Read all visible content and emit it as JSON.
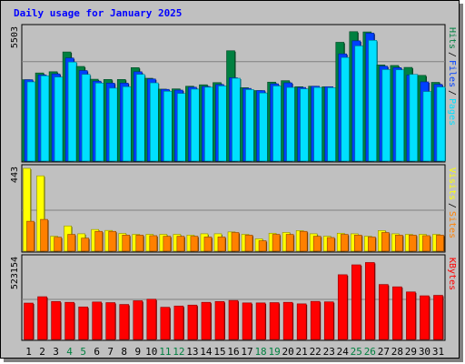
{
  "chart_data": {
    "type": "bar",
    "title": "Daily usage for January 2025",
    "categories": [
      "1",
      "2",
      "3",
      "4",
      "5",
      "6",
      "7",
      "8",
      "9",
      "10",
      "11",
      "12",
      "13",
      "14",
      "15",
      "16",
      "17",
      "18",
      "19",
      "20",
      "21",
      "22",
      "23",
      "24",
      "25",
      "26",
      "27",
      "28",
      "29",
      "30",
      "31"
    ],
    "weekend_days": [
      "4",
      "5",
      "11",
      "12",
      "18",
      "19",
      "25",
      "26"
    ],
    "panels": [
      {
        "name": "hits-files-pages",
        "ymax_label": "5503",
        "ymax": 5503,
        "right_labels": [
          {
            "text": "Hits",
            "color": "#008040"
          },
          {
            "text": "Files",
            "color": "#0040ff"
          },
          {
            "text": "Pages",
            "color": "#00e0ff"
          }
        ],
        "series": [
          {
            "name": "Hits",
            "color": "#008040",
            "values": [
              3370,
              3650,
              3700,
              4520,
              3920,
              3390,
              3380,
              3380,
              3870,
              3430,
              2980,
              2990,
              3100,
              3160,
              3250,
              4570,
              3040,
              2920,
              3270,
              3330,
              3080,
              3100,
              3080,
              4920,
              5360,
              5350,
              3980,
              3960,
              3880,
              3550,
              3260
            ]
          },
          {
            "name": "Files",
            "color": "#0040ff",
            "values": [
              3370,
              3570,
              3610,
              4270,
              3750,
              3310,
              3230,
              3230,
              3700,
              3400,
              2970,
              2940,
              3060,
              3090,
              3170,
              3450,
              3010,
              2920,
              3200,
              3240,
              3050,
              3100,
              3080,
              4440,
              4980,
              5300,
              3930,
              3870,
              3560,
              3280,
              3180
            ]
          },
          {
            "name": "Pages",
            "color": "#00e0ff",
            "values": [
              3280,
              3530,
              3480,
              4100,
              3590,
              3230,
              3020,
              3080,
              3590,
              3240,
              2890,
              2800,
              2980,
              3060,
              3110,
              3430,
              2960,
              2820,
              3110,
              3050,
              2990,
              3050,
              3040,
              4290,
              4770,
              5000,
              3790,
              3780,
              3590,
              2880,
              3070
            ]
          }
        ]
      },
      {
        "name": "visits-sites",
        "ymax_label": "443",
        "ymax": 443,
        "right_labels": [
          {
            "text": "Visits",
            "color": "#ffff00"
          },
          {
            "text": "Sites",
            "color": "#ff8000"
          }
        ],
        "series": [
          {
            "name": "Visits",
            "color": "#ffff00",
            "values": [
              443,
              403,
              80,
              135,
              93,
              116,
              111,
              95,
              90,
              90,
              90,
              90,
              86,
              93,
              93,
              103,
              90,
              66,
              96,
              100,
              110,
              93,
              80,
              96,
              93,
              80,
              110,
              93,
              90,
              90,
              90
            ]
          },
          {
            "name": "Sites",
            "color": "#ff8000",
            "values": [
              160,
              170,
              75,
              90,
              70,
              106,
              106,
              86,
              86,
              83,
              80,
              80,
              80,
              76,
              76,
              100,
              86,
              56,
              90,
              90,
              106,
              80,
              73,
              90,
              86,
              76,
              100,
              86,
              86,
              83,
              86
            ]
          }
        ]
      },
      {
        "name": "kbytes",
        "ymax_label": "523154",
        "ymax": 523154,
        "right_labels": [
          {
            "text": "KBytes",
            "color": "#ff0000"
          }
        ],
        "series": [
          {
            "name": "KBytes",
            "color": "#ff0000",
            "values": [
              235000,
              276000,
              245000,
              240000,
              210000,
              242000,
              238000,
              226000,
              250000,
              260000,
              208000,
              216000,
              222000,
              240000,
              245000,
              252000,
              236000,
              236000,
              238000,
              240000,
              230000,
              246000,
              243000,
              418000,
              482000,
              497000,
              355000,
              340000,
              307000,
              282000,
              285000
            ]
          }
        ]
      }
    ]
  }
}
